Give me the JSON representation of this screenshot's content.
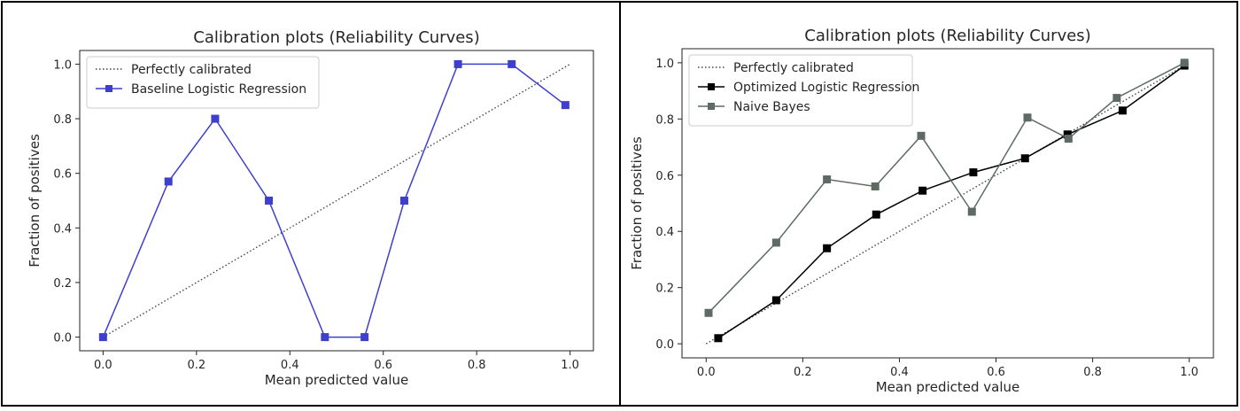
{
  "chart_data": [
    {
      "type": "line",
      "title": "Calibration plots (Reliability Curves)",
      "xlabel": "Mean predicted value",
      "ylabel": "Fraction of positives",
      "xlim": [
        -0.05,
        1.05
      ],
      "ylim": [
        -0.05,
        1.05
      ],
      "xticks": [
        "0.0",
        "0.2",
        "0.4",
        "0.6",
        "0.8",
        "1.0"
      ],
      "yticks": [
        "0.0",
        "0.2",
        "0.4",
        "0.6",
        "0.8",
        "1.0"
      ],
      "grid": false,
      "legend_position": "upper-left",
      "series": [
        {
          "name": "Perfectly calibrated",
          "style": "dotted",
          "color": "#444444",
          "marker": "none",
          "x": [
            0,
            1
          ],
          "y": [
            0,
            1
          ]
        },
        {
          "name": "Baseline Logistic Regression",
          "style": "solid",
          "color": "#3f3fcf",
          "marker": "square",
          "x": [
            0.0,
            0.14,
            0.24,
            0.355,
            0.475,
            0.56,
            0.645,
            0.76,
            0.875,
            0.99
          ],
          "y": [
            0.0,
            0.57,
            0.8,
            0.5,
            0.0,
            0.0,
            0.5,
            1.0,
            1.0,
            0.85
          ]
        }
      ]
    },
    {
      "type": "line",
      "title": "Calibration plots (Reliability Curves)",
      "xlabel": "Mean predicted value",
      "ylabel": "Fraction of positives",
      "xlim": [
        -0.05,
        1.05
      ],
      "ylim": [
        -0.05,
        1.05
      ],
      "xticks": [
        "0.0",
        "0.2",
        "0.4",
        "0.6",
        "0.8",
        "1.0"
      ],
      "yticks": [
        "0.0",
        "0.2",
        "0.4",
        "0.6",
        "0.8",
        "1.0"
      ],
      "grid": false,
      "legend_position": "upper-left",
      "series": [
        {
          "name": "Perfectly calibrated",
          "style": "dotted",
          "color": "#444444",
          "marker": "none",
          "x": [
            0,
            1
          ],
          "y": [
            0,
            1
          ]
        },
        {
          "name": "Optimized Logistic Regression",
          "style": "solid",
          "color": "#000000",
          "marker": "square",
          "x": [
            0.025,
            0.145,
            0.25,
            0.352,
            0.448,
            0.553,
            0.66,
            0.748,
            0.862,
            0.99
          ],
          "y": [
            0.02,
            0.155,
            0.34,
            0.46,
            0.545,
            0.61,
            0.66,
            0.745,
            0.83,
            0.99
          ]
        },
        {
          "name": "Naive Bayes",
          "style": "solid",
          "color": "#5d6b64",
          "marker": "square",
          "x": [
            0.005,
            0.145,
            0.25,
            0.35,
            0.445,
            0.55,
            0.665,
            0.75,
            0.85,
            0.99
          ],
          "y": [
            0.11,
            0.36,
            0.585,
            0.56,
            0.74,
            0.47,
            0.805,
            0.73,
            0.875,
            1.0
          ]
        }
      ]
    }
  ]
}
